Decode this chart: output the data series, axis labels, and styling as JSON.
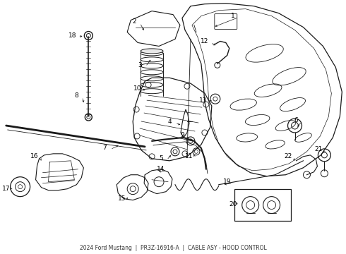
{
  "bg_color": "#ffffff",
  "line_color": "#1a1a1a",
  "fig_width": 4.9,
  "fig_height": 3.6,
  "dpi": 100,
  "caption": "2024 Ford Mustang  |  PR3Z-16916-A  |  CABLE ASY - HOOD CONTROL"
}
